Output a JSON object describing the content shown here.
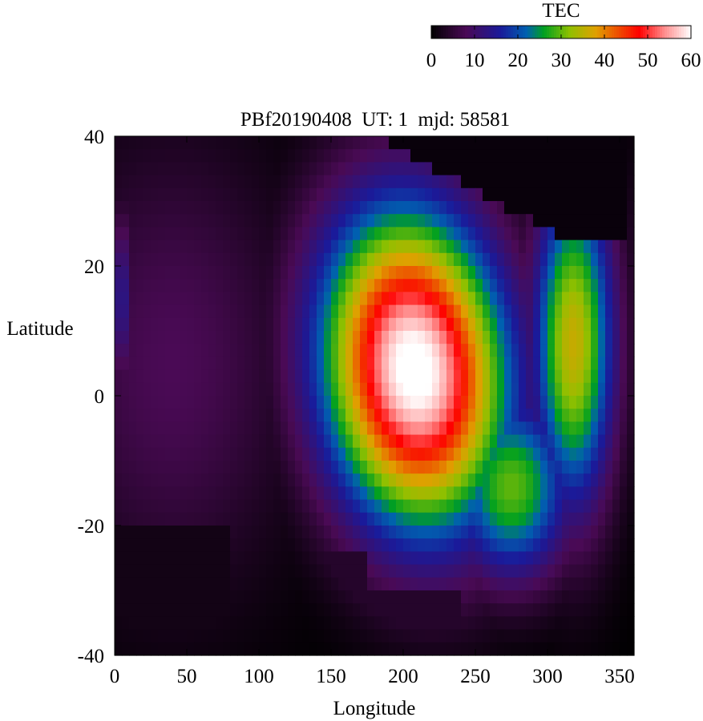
{
  "chart_data": {
    "type": "heatmap",
    "title": "PBf20190408  UT: 1  mjd: 58581",
    "xlabel": "Longitude",
    "ylabel": "Latitude",
    "xlim": [
      0,
      360
    ],
    "ylim": [
      -40,
      40
    ],
    "x_ticks": [
      0,
      50,
      100,
      150,
      200,
      250,
      300,
      350
    ],
    "y_ticks": [
      -40,
      -20,
      0,
      20,
      40
    ],
    "colorbar": {
      "label": "TEC",
      "range": [
        0,
        60
      ],
      "ticks": [
        0,
        10,
        20,
        30,
        40,
        50,
        60
      ],
      "colormap": [
        {
          "value": 0,
          "color": "#000000"
        },
        {
          "value": 8,
          "color": "#4a0a55"
        },
        {
          "value": 16,
          "color": "#1a1a9a"
        },
        {
          "value": 22,
          "color": "#0060b0"
        },
        {
          "value": 26,
          "color": "#00a020"
        },
        {
          "value": 32,
          "color": "#90c000"
        },
        {
          "value": 38,
          "color": "#e0a000"
        },
        {
          "value": 44,
          "color": "#f04000"
        },
        {
          "value": 48,
          "color": "#ff0000"
        },
        {
          "value": 54,
          "color": "#ff9090"
        },
        {
          "value": 60,
          "color": "#ffffff"
        }
      ]
    },
    "grid": {
      "lon_start": 0,
      "lon_step": 5,
      "n_lon": 72,
      "lat_start": 40,
      "lat_step": -2,
      "n_lat": 40
    },
    "field_model": {
      "main_peak": {
        "lon": 208,
        "lat": 4,
        "value": 62,
        "lon_width": 45,
        "lat_width": 17
      },
      "east_wing": {
        "lon": 318,
        "lat": 8,
        "value": 36,
        "lon_width": 20,
        "lat_width": 18
      },
      "southeast_lobe": {
        "lon": 275,
        "lat": -14,
        "value": 30,
        "lon_width": 30,
        "lat_width": 10
      },
      "background_band": {
        "lon_center": 40,
        "value": 8,
        "lon_width": 60,
        "lat_width": 25
      },
      "night_zero_regions": [
        {
          "lon_min": 80,
          "lon_max": 175,
          "lat_min": -40,
          "lat_max": -24,
          "edge_slope_deg": -0.3
        },
        {
          "lon_min": 160,
          "lon_max": 240,
          "lat_min": -40,
          "lat_max": -30
        },
        {
          "lon_min": 180,
          "lon_max": 360,
          "lat_min": 25,
          "lat_max": 40,
          "edge": "diagonal"
        }
      ]
    }
  }
}
